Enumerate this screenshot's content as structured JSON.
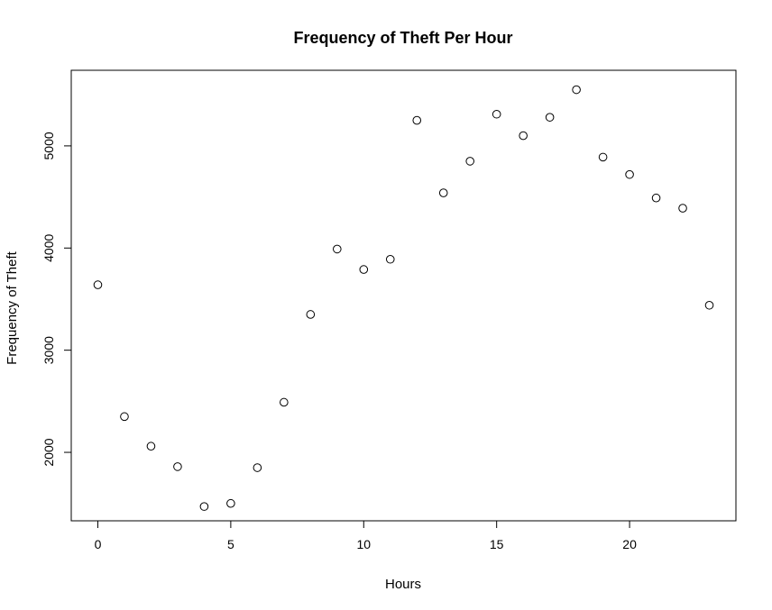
{
  "chart_data": {
    "type": "scatter",
    "title": "Frequency of Theft Per Hour",
    "xlabel": "Hours",
    "ylabel": "Frequency of Theft",
    "x": [
      0,
      1,
      2,
      3,
      4,
      5,
      6,
      7,
      8,
      9,
      10,
      11,
      12,
      13,
      14,
      15,
      16,
      17,
      18,
      19,
      20,
      21,
      22,
      23
    ],
    "y": [
      3640,
      2350,
      2060,
      1860,
      1470,
      1500,
      1850,
      2490,
      3350,
      3990,
      3790,
      3890,
      5250,
      4540,
      4850,
      5310,
      5100,
      5280,
      5550,
      4890,
      4720,
      4490,
      4390,
      3440
    ],
    "xlim": [
      -1,
      24
    ],
    "ylim": [
      1330,
      5740
    ],
    "xticks": [
      0,
      5,
      10,
      15,
      20
    ],
    "yticks": [
      2000,
      3000,
      4000,
      5000
    ],
    "grid": false,
    "point_marker": "open-circle",
    "point_color": "#000000"
  }
}
